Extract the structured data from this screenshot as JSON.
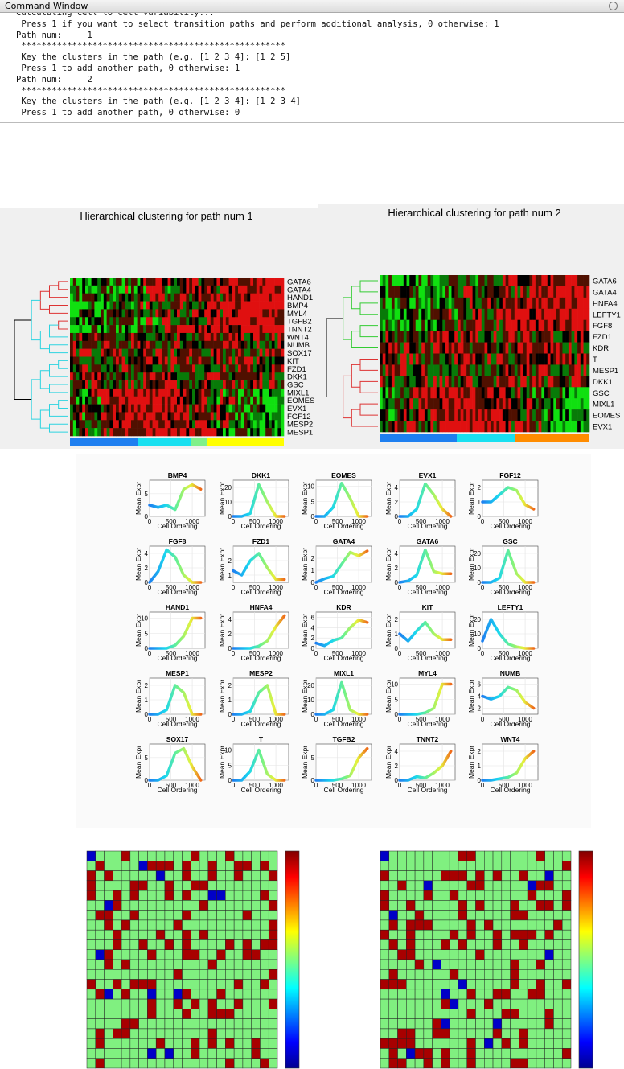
{
  "command_window": {
    "title": "Command Window",
    "lines": [
      "Calculating cell to cell variability...",
      " Press 1 if you want to select transition paths and perform additional analysis, 0 otherwise: 1",
      "Path num:     1",
      " ****************************************************",
      " Key the clusters in the path (e.g. [1 2 3 4]: [1 2 5]",
      " Press 1 to add another path, 0 otherwise: 1",
      "Path num:     2",
      " ****************************************************",
      " Key the clusters in the path (e.g. [1 2 3 4]: [1 2 3 4]",
      " Press 1 to add another path, 0 otherwise: 0"
    ]
  },
  "heatmaps": [
    {
      "title": "Hierarchical clustering for path num 1",
      "genes": [
        "GATA6",
        "GATA4",
        "HAND1",
        "BMP4",
        "MYL4",
        "TGFB2",
        "TNNT2",
        "WNT4",
        "NUMB",
        "SOX17",
        "KIT",
        "FZD1",
        "DKK1",
        "GSC",
        "MIXL1",
        "EOMES",
        "EVX1",
        "FGF12",
        "MESP2",
        "MESP1"
      ]
    },
    {
      "title": "Hierarchical clustering for path num 2",
      "genes": [
        "GATA6",
        "GATA4",
        "HNFA4",
        "LEFTY1",
        "FGF8",
        "FZD1",
        "KDR",
        "T",
        "MESP1",
        "DKK1",
        "GSC",
        "MIXL1",
        "EOMES",
        "EVX1"
      ]
    }
  ],
  "small_multiples": {
    "y_label": "Mean Expr",
    "x_label": "Cell Ordering",
    "x": [
      0,
      200,
      400,
      600,
      800,
      1000,
      1200
    ],
    "xlim": [
      0,
      1300
    ],
    "xticks": [
      0,
      500,
      1000
    ],
    "plots": [
      {
        "title": "BMP4",
        "ylim": [
          0,
          8
        ],
        "yticks": [
          0,
          5
        ],
        "values": [
          2.5,
          2,
          2.5,
          1.5,
          6,
          7,
          6
        ]
      },
      {
        "title": "DKK1",
        "ylim": [
          0,
          25
        ],
        "yticks": [
          0,
          10,
          20
        ],
        "values": [
          0,
          0,
          2,
          22,
          10,
          0,
          0
        ]
      },
      {
        "title": "EOMES",
        "ylim": [
          0,
          12
        ],
        "yticks": [
          0,
          5,
          10
        ],
        "values": [
          0,
          0,
          3,
          11,
          6,
          0,
          0
        ]
      },
      {
        "title": "EVX1",
        "ylim": [
          0,
          5
        ],
        "yticks": [
          0,
          2,
          4
        ],
        "values": [
          0,
          0,
          1,
          4.5,
          3,
          1,
          0
        ]
      },
      {
        "title": "FGF12",
        "ylim": [
          0,
          2.5
        ],
        "yticks": [
          0,
          1,
          2
        ],
        "values": [
          1,
          1,
          1.5,
          2,
          1.8,
          0.8,
          0.5
        ]
      },
      {
        "title": "FGF8",
        "ylim": [
          0,
          5
        ],
        "yticks": [
          0,
          2,
          4
        ],
        "values": [
          0,
          1.5,
          4.5,
          3.5,
          1,
          0,
          0
        ]
      },
      {
        "title": "FZD1",
        "ylim": [
          0.5,
          3
        ],
        "yticks": [
          1,
          2
        ],
        "values": [
          1.3,
          1,
          2,
          2.5,
          1.5,
          0.7,
          0.7
        ]
      },
      {
        "title": "GATA4",
        "ylim": [
          0,
          3
        ],
        "yticks": [
          0,
          1,
          2
        ],
        "values": [
          0,
          0.3,
          0.5,
          1.5,
          2.5,
          2.2,
          2.6
        ]
      },
      {
        "title": "GATA6",
        "ylim": [
          0,
          5
        ],
        "yticks": [
          0,
          2,
          4
        ],
        "values": [
          0,
          0.2,
          1,
          4.5,
          1.5,
          1.2,
          1.2
        ]
      },
      {
        "title": "GSC",
        "ylim": [
          0,
          25
        ],
        "yticks": [
          0,
          10,
          20
        ],
        "values": [
          0,
          0,
          3,
          22,
          6,
          0,
          0
        ]
      },
      {
        "title": "HAND1",
        "ylim": [
          0,
          12
        ],
        "yticks": [
          0,
          5,
          10
        ],
        "values": [
          0,
          0,
          0,
          1,
          4,
          10,
          10
        ]
      },
      {
        "title": "HNFA4",
        "ylim": [
          0,
          5
        ],
        "yticks": [
          0,
          2,
          4
        ],
        "values": [
          0,
          0,
          0,
          0.3,
          1,
          3,
          4.5
        ]
      },
      {
        "title": "KDR",
        "ylim": [
          0,
          7
        ],
        "yticks": [
          0,
          2,
          4,
          6
        ],
        "values": [
          1,
          0.5,
          1.5,
          2,
          4,
          5.5,
          5
        ]
      },
      {
        "title": "KIT",
        "ylim": [
          0,
          2.5
        ],
        "yticks": [
          0,
          1,
          2
        ],
        "values": [
          1,
          0.5,
          1.2,
          1.8,
          1,
          0.6,
          0.6
        ]
      },
      {
        "title": "LEFTY1",
        "ylim": [
          0,
          25
        ],
        "yticks": [
          0,
          10,
          20
        ],
        "values": [
          5,
          20,
          10,
          3,
          1,
          0,
          0
        ]
      },
      {
        "title": "MESP1",
        "ylim": [
          0,
          2.5
        ],
        "yticks": [
          0,
          1,
          2
        ],
        "values": [
          0,
          0,
          0.3,
          2,
          1.5,
          0,
          0
        ]
      },
      {
        "title": "MESP2",
        "ylim": [
          0,
          2.5
        ],
        "yticks": [
          0,
          1,
          2
        ],
        "values": [
          0,
          0,
          0.2,
          1.5,
          2,
          0,
          0
        ]
      },
      {
        "title": "MIXL1",
        "ylim": [
          0,
          25
        ],
        "yticks": [
          0,
          10,
          20
        ],
        "values": [
          0,
          0,
          3,
          22,
          3,
          0,
          0
        ]
      },
      {
        "title": "MYL4",
        "ylim": [
          0,
          12
        ],
        "yticks": [
          0,
          5,
          10
        ],
        "values": [
          0,
          0,
          0,
          0.5,
          2,
          10,
          10
        ]
      },
      {
        "title": "NUMB",
        "ylim": [
          1,
          7
        ],
        "yticks": [
          2,
          4,
          6
        ],
        "values": [
          4,
          3.5,
          4,
          5.5,
          5,
          3,
          2
        ]
      },
      {
        "title": "SOX17",
        "ylim": [
          0,
          8
        ],
        "yticks": [
          0,
          5
        ],
        "values": [
          0,
          0,
          1,
          6,
          7,
          3,
          0
        ]
      },
      {
        "title": "T",
        "ylim": [
          0,
          12
        ],
        "yticks": [
          0,
          5,
          10
        ],
        "values": [
          0,
          0,
          3,
          10,
          2,
          0,
          0
        ]
      },
      {
        "title": "TGFB2",
        "ylim": [
          0,
          8
        ],
        "yticks": [
          0,
          5
        ],
        "values": [
          0,
          0,
          0,
          0.3,
          1,
          5,
          7
        ]
      },
      {
        "title": "TNNT2",
        "ylim": [
          0,
          5
        ],
        "yticks": [
          0,
          2,
          4
        ],
        "values": [
          0,
          0,
          0.5,
          0.3,
          1,
          2,
          4
        ]
      },
      {
        "title": "WNT4",
        "ylim": [
          0,
          2.5
        ],
        "yticks": [
          0,
          1,
          2
        ],
        "values": [
          0,
          0,
          0.1,
          0.2,
          0.5,
          1.5,
          2
        ]
      }
    ]
  }
}
